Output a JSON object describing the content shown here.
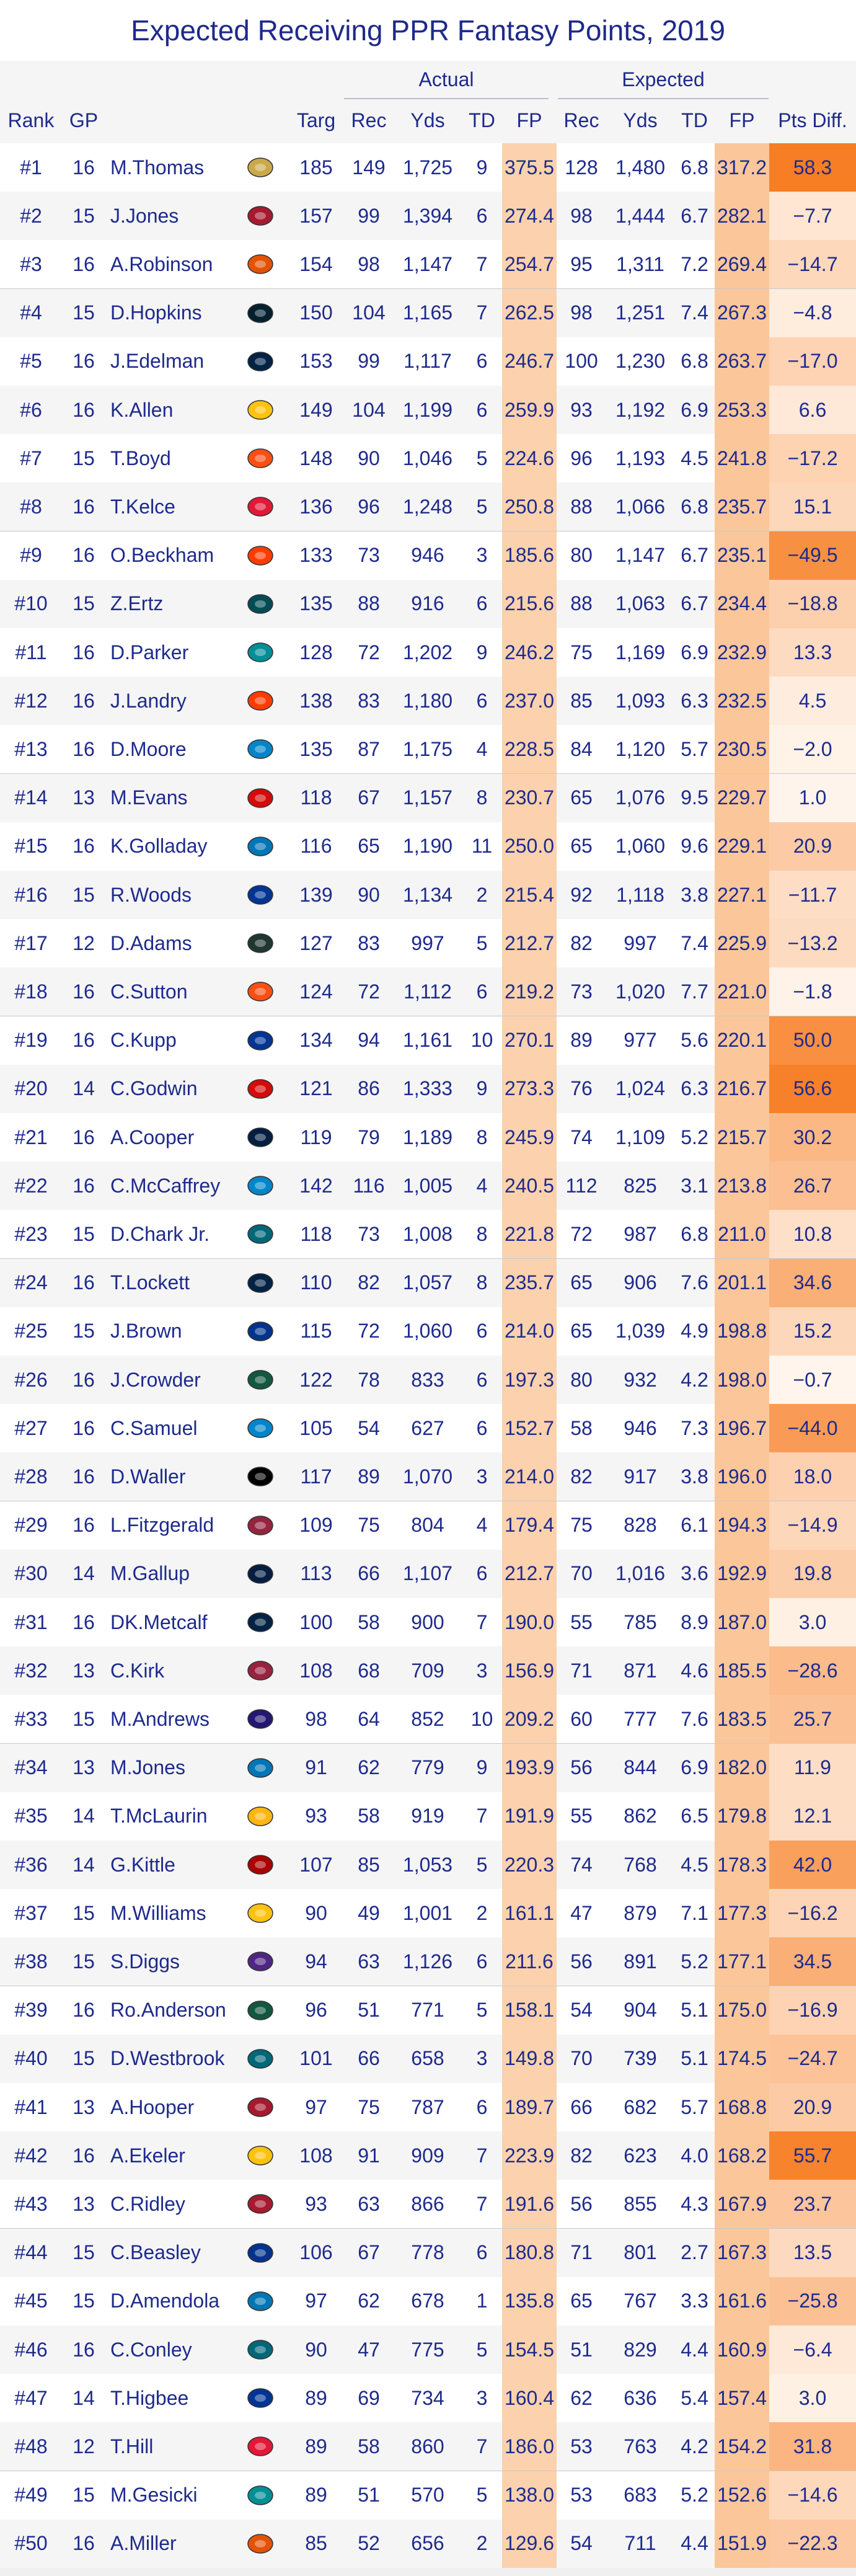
{
  "title": "Expected Receiving PPR Fantasy Points, 2019",
  "groups": {
    "actual": "Actual",
    "expected": "Expected"
  },
  "columns": {
    "rank": "Rank",
    "gp": "GP",
    "targ": "Targ",
    "a_rec": "Rec",
    "a_yds": "Yds",
    "a_td": "TD",
    "a_fp": "FP",
    "e_rec": "Rec",
    "e_yds": "Yds",
    "e_td": "TD",
    "e_fp": "FP",
    "pts_diff": "Pts Diff."
  },
  "team_colors": {
    "NO": "#c9a94a",
    "ATL": "#a6192e",
    "CHI": "#e35205",
    "HOU": "#03202f",
    "NE": "#002244",
    "LAC": "#ffc20e",
    "CIN": "#fb4f14",
    "KC": "#e31837",
    "CLE": "#ff3c00",
    "PHI": "#004c54",
    "MIA": "#008e97",
    "CAR": "#0085ca",
    "TB": "#d50a0a",
    "DET": "#0076b6",
    "LAR": "#003594",
    "GB": "#203731",
    "DEN": "#fb4f14",
    "DAL": "#041e42",
    "JAX": "#006778",
    "SEA": "#002244",
    "BUF": "#00338d",
    "NYJ": "#125740",
    "OAK": "#000000",
    "ARI": "#97233f",
    "BAL": "#241773",
    "WAS": "#ffb612",
    "SF": "#aa0000",
    "MIN": "#4f2683"
  },
  "rows": [
    {
      "rank": "#1",
      "gp": "16",
      "player": "M.Thomas",
      "team": "NO",
      "targ": "185",
      "a_rec": "149",
      "a_yds": "1,725",
      "a_td": "9",
      "a_fp": "375.5",
      "e_rec": "128",
      "e_yds": "1,480",
      "e_td": "6.8",
      "e_fp": "317.2",
      "diff": "58.3",
      "diff_value": 58.3
    },
    {
      "rank": "#2",
      "gp": "15",
      "player": "J.Jones",
      "team": "ATL",
      "targ": "157",
      "a_rec": "99",
      "a_yds": "1,394",
      "a_td": "6",
      "a_fp": "274.4",
      "e_rec": "98",
      "e_yds": "1,444",
      "e_td": "6.7",
      "e_fp": "282.1",
      "diff": "−7.7",
      "diff_value": -7.7
    },
    {
      "rank": "#3",
      "gp": "16",
      "player": "A.Robinson",
      "team": "CHI",
      "targ": "154",
      "a_rec": "98",
      "a_yds": "1,147",
      "a_td": "7",
      "a_fp": "254.7",
      "e_rec": "95",
      "e_yds": "1,311",
      "e_td": "7.2",
      "e_fp": "269.4",
      "diff": "−14.7",
      "diff_value": -14.7
    },
    {
      "rank": "#4",
      "gp": "15",
      "player": "D.Hopkins",
      "team": "HOU",
      "targ": "150",
      "a_rec": "104",
      "a_yds": "1,165",
      "a_td": "7",
      "a_fp": "262.5",
      "e_rec": "98",
      "e_yds": "1,251",
      "e_td": "7.4",
      "e_fp": "267.3",
      "diff": "−4.8",
      "diff_value": -4.8
    },
    {
      "rank": "#5",
      "gp": "16",
      "player": "J.Edelman",
      "team": "NE",
      "targ": "153",
      "a_rec": "99",
      "a_yds": "1,117",
      "a_td": "6",
      "a_fp": "246.7",
      "e_rec": "100",
      "e_yds": "1,230",
      "e_td": "6.8",
      "e_fp": "263.7",
      "diff": "−17.0",
      "diff_value": -17.0
    },
    {
      "rank": "#6",
      "gp": "16",
      "player": "K.Allen",
      "team": "LAC",
      "targ": "149",
      "a_rec": "104",
      "a_yds": "1,199",
      "a_td": "6",
      "a_fp": "259.9",
      "e_rec": "93",
      "e_yds": "1,192",
      "e_td": "6.9",
      "e_fp": "253.3",
      "diff": "6.6",
      "diff_value": 6.6
    },
    {
      "rank": "#7",
      "gp": "15",
      "player": "T.Boyd",
      "team": "CIN",
      "targ": "148",
      "a_rec": "90",
      "a_yds": "1,046",
      "a_td": "5",
      "a_fp": "224.6",
      "e_rec": "96",
      "e_yds": "1,193",
      "e_td": "4.5",
      "e_fp": "241.8",
      "diff": "−17.2",
      "diff_value": -17.2
    },
    {
      "rank": "#8",
      "gp": "16",
      "player": "T.Kelce",
      "team": "KC",
      "targ": "136",
      "a_rec": "96",
      "a_yds": "1,248",
      "a_td": "5",
      "a_fp": "250.8",
      "e_rec": "88",
      "e_yds": "1,066",
      "e_td": "6.8",
      "e_fp": "235.7",
      "diff": "15.1",
      "diff_value": 15.1
    },
    {
      "rank": "#9",
      "gp": "16",
      "player": "O.Beckham",
      "team": "CLE",
      "targ": "133",
      "a_rec": "73",
      "a_yds": "946",
      "a_td": "3",
      "a_fp": "185.6",
      "e_rec": "80",
      "e_yds": "1,147",
      "e_td": "6.7",
      "e_fp": "235.1",
      "diff": "−49.5",
      "diff_value": -49.5
    },
    {
      "rank": "#10",
      "gp": "15",
      "player": "Z.Ertz",
      "team": "PHI",
      "targ": "135",
      "a_rec": "88",
      "a_yds": "916",
      "a_td": "6",
      "a_fp": "215.6",
      "e_rec": "88",
      "e_yds": "1,063",
      "e_td": "6.7",
      "e_fp": "234.4",
      "diff": "−18.8",
      "diff_value": -18.8
    },
    {
      "rank": "#11",
      "gp": "16",
      "player": "D.Parker",
      "team": "MIA",
      "targ": "128",
      "a_rec": "72",
      "a_yds": "1,202",
      "a_td": "9",
      "a_fp": "246.2",
      "e_rec": "75",
      "e_yds": "1,169",
      "e_td": "6.9",
      "e_fp": "232.9",
      "diff": "13.3",
      "diff_value": 13.3
    },
    {
      "rank": "#12",
      "gp": "16",
      "player": "J.Landry",
      "team": "CLE",
      "targ": "138",
      "a_rec": "83",
      "a_yds": "1,180",
      "a_td": "6",
      "a_fp": "237.0",
      "e_rec": "85",
      "e_yds": "1,093",
      "e_td": "6.3",
      "e_fp": "232.5",
      "diff": "4.5",
      "diff_value": 4.5
    },
    {
      "rank": "#13",
      "gp": "16",
      "player": "D.Moore",
      "team": "CAR",
      "targ": "135",
      "a_rec": "87",
      "a_yds": "1,175",
      "a_td": "4",
      "a_fp": "228.5",
      "e_rec": "84",
      "e_yds": "1,120",
      "e_td": "5.7",
      "e_fp": "230.5",
      "diff": "−2.0",
      "diff_value": -2.0
    },
    {
      "rank": "#14",
      "gp": "13",
      "player": "M.Evans",
      "team": "TB",
      "targ": "118",
      "a_rec": "67",
      "a_yds": "1,157",
      "a_td": "8",
      "a_fp": "230.7",
      "e_rec": "65",
      "e_yds": "1,076",
      "e_td": "9.5",
      "e_fp": "229.7",
      "diff": "1.0",
      "diff_value": 1.0
    },
    {
      "rank": "#15",
      "gp": "16",
      "player": "K.Golladay",
      "team": "DET",
      "targ": "116",
      "a_rec": "65",
      "a_yds": "1,190",
      "a_td": "11",
      "a_fp": "250.0",
      "e_rec": "65",
      "e_yds": "1,060",
      "e_td": "9.6",
      "e_fp": "229.1",
      "diff": "20.9",
      "diff_value": 20.9
    },
    {
      "rank": "#16",
      "gp": "15",
      "player": "R.Woods",
      "team": "LAR",
      "targ": "139",
      "a_rec": "90",
      "a_yds": "1,134",
      "a_td": "2",
      "a_fp": "215.4",
      "e_rec": "92",
      "e_yds": "1,118",
      "e_td": "3.8",
      "e_fp": "227.1",
      "diff": "−11.7",
      "diff_value": -11.7
    },
    {
      "rank": "#17",
      "gp": "12",
      "player": "D.Adams",
      "team": "GB",
      "targ": "127",
      "a_rec": "83",
      "a_yds": "997",
      "a_td": "5",
      "a_fp": "212.7",
      "e_rec": "82",
      "e_yds": "997",
      "e_td": "7.4",
      "e_fp": "225.9",
      "diff": "−13.2",
      "diff_value": -13.2
    },
    {
      "rank": "#18",
      "gp": "16",
      "player": "C.Sutton",
      "team": "DEN",
      "targ": "124",
      "a_rec": "72",
      "a_yds": "1,112",
      "a_td": "6",
      "a_fp": "219.2",
      "e_rec": "73",
      "e_yds": "1,020",
      "e_td": "7.7",
      "e_fp": "221.0",
      "diff": "−1.8",
      "diff_value": -1.8
    },
    {
      "rank": "#19",
      "gp": "16",
      "player": "C.Kupp",
      "team": "LAR",
      "targ": "134",
      "a_rec": "94",
      "a_yds": "1,161",
      "a_td": "10",
      "a_fp": "270.1",
      "e_rec": "89",
      "e_yds": "977",
      "e_td": "5.6",
      "e_fp": "220.1",
      "diff": "50.0",
      "diff_value": 50.0
    },
    {
      "rank": "#20",
      "gp": "14",
      "player": "C.Godwin",
      "team": "TB",
      "targ": "121",
      "a_rec": "86",
      "a_yds": "1,333",
      "a_td": "9",
      "a_fp": "273.3",
      "e_rec": "76",
      "e_yds": "1,024",
      "e_td": "6.3",
      "e_fp": "216.7",
      "diff": "56.6",
      "diff_value": 56.6
    },
    {
      "rank": "#21",
      "gp": "16",
      "player": "A.Cooper",
      "team": "DAL",
      "targ": "119",
      "a_rec": "79",
      "a_yds": "1,189",
      "a_td": "8",
      "a_fp": "245.9",
      "e_rec": "74",
      "e_yds": "1,109",
      "e_td": "5.2",
      "e_fp": "215.7",
      "diff": "30.2",
      "diff_value": 30.2
    },
    {
      "rank": "#22",
      "gp": "16",
      "player": "C.McCaffrey",
      "team": "CAR",
      "targ": "142",
      "a_rec": "116",
      "a_yds": "1,005",
      "a_td": "4",
      "a_fp": "240.5",
      "e_rec": "112",
      "e_yds": "825",
      "e_td": "3.1",
      "e_fp": "213.8",
      "diff": "26.7",
      "diff_value": 26.7
    },
    {
      "rank": "#23",
      "gp": "15",
      "player": "D.Chark Jr.",
      "team": "JAX",
      "targ": "118",
      "a_rec": "73",
      "a_yds": "1,008",
      "a_td": "8",
      "a_fp": "221.8",
      "e_rec": "72",
      "e_yds": "987",
      "e_td": "6.8",
      "e_fp": "211.0",
      "diff": "10.8",
      "diff_value": 10.8
    },
    {
      "rank": "#24",
      "gp": "16",
      "player": "T.Lockett",
      "team": "SEA",
      "targ": "110",
      "a_rec": "82",
      "a_yds": "1,057",
      "a_td": "8",
      "a_fp": "235.7",
      "e_rec": "65",
      "e_yds": "906",
      "e_td": "7.6",
      "e_fp": "201.1",
      "diff": "34.6",
      "diff_value": 34.6
    },
    {
      "rank": "#25",
      "gp": "15",
      "player": "J.Brown",
      "team": "BUF",
      "targ": "115",
      "a_rec": "72",
      "a_yds": "1,060",
      "a_td": "6",
      "a_fp": "214.0",
      "e_rec": "65",
      "e_yds": "1,039",
      "e_td": "4.9",
      "e_fp": "198.8",
      "diff": "15.2",
      "diff_value": 15.2
    },
    {
      "rank": "#26",
      "gp": "16",
      "player": "J.Crowder",
      "team": "NYJ",
      "targ": "122",
      "a_rec": "78",
      "a_yds": "833",
      "a_td": "6",
      "a_fp": "197.3",
      "e_rec": "80",
      "e_yds": "932",
      "e_td": "4.2",
      "e_fp": "198.0",
      "diff": "−0.7",
      "diff_value": -0.7
    },
    {
      "rank": "#27",
      "gp": "16",
      "player": "C.Samuel",
      "team": "CAR",
      "targ": "105",
      "a_rec": "54",
      "a_yds": "627",
      "a_td": "6",
      "a_fp": "152.7",
      "e_rec": "58",
      "e_yds": "946",
      "e_td": "7.3",
      "e_fp": "196.7",
      "diff": "−44.0",
      "diff_value": -44.0
    },
    {
      "rank": "#28",
      "gp": "16",
      "player": "D.Waller",
      "team": "OAK",
      "targ": "117",
      "a_rec": "89",
      "a_yds": "1,070",
      "a_td": "3",
      "a_fp": "214.0",
      "e_rec": "82",
      "e_yds": "917",
      "e_td": "3.8",
      "e_fp": "196.0",
      "diff": "18.0",
      "diff_value": 18.0
    },
    {
      "rank": "#29",
      "gp": "16",
      "player": "L.Fitzgerald",
      "team": "ARI",
      "targ": "109",
      "a_rec": "75",
      "a_yds": "804",
      "a_td": "4",
      "a_fp": "179.4",
      "e_rec": "75",
      "e_yds": "828",
      "e_td": "6.1",
      "e_fp": "194.3",
      "diff": "−14.9",
      "diff_value": -14.9
    },
    {
      "rank": "#30",
      "gp": "14",
      "player": "M.Gallup",
      "team": "DAL",
      "targ": "113",
      "a_rec": "66",
      "a_yds": "1,107",
      "a_td": "6",
      "a_fp": "212.7",
      "e_rec": "70",
      "e_yds": "1,016",
      "e_td": "3.6",
      "e_fp": "192.9",
      "diff": "19.8",
      "diff_value": 19.8
    },
    {
      "rank": "#31",
      "gp": "16",
      "player": "DK.Metcalf",
      "team": "SEA",
      "targ": "100",
      "a_rec": "58",
      "a_yds": "900",
      "a_td": "7",
      "a_fp": "190.0",
      "e_rec": "55",
      "e_yds": "785",
      "e_td": "8.9",
      "e_fp": "187.0",
      "diff": "3.0",
      "diff_value": 3.0
    },
    {
      "rank": "#32",
      "gp": "13",
      "player": "C.Kirk",
      "team": "ARI",
      "targ": "108",
      "a_rec": "68",
      "a_yds": "709",
      "a_td": "3",
      "a_fp": "156.9",
      "e_rec": "71",
      "e_yds": "871",
      "e_td": "4.6",
      "e_fp": "185.5",
      "diff": "−28.6",
      "diff_value": -28.6
    },
    {
      "rank": "#33",
      "gp": "15",
      "player": "M.Andrews",
      "team": "BAL",
      "targ": "98",
      "a_rec": "64",
      "a_yds": "852",
      "a_td": "10",
      "a_fp": "209.2",
      "e_rec": "60",
      "e_yds": "777",
      "e_td": "7.6",
      "e_fp": "183.5",
      "diff": "25.7",
      "diff_value": 25.7
    },
    {
      "rank": "#34",
      "gp": "13",
      "player": "M.Jones",
      "team": "DET",
      "targ": "91",
      "a_rec": "62",
      "a_yds": "779",
      "a_td": "9",
      "a_fp": "193.9",
      "e_rec": "56",
      "e_yds": "844",
      "e_td": "6.9",
      "e_fp": "182.0",
      "diff": "11.9",
      "diff_value": 11.9
    },
    {
      "rank": "#35",
      "gp": "14",
      "player": "T.McLaurin",
      "team": "WAS",
      "targ": "93",
      "a_rec": "58",
      "a_yds": "919",
      "a_td": "7",
      "a_fp": "191.9",
      "e_rec": "55",
      "e_yds": "862",
      "e_td": "6.5",
      "e_fp": "179.8",
      "diff": "12.1",
      "diff_value": 12.1
    },
    {
      "rank": "#36",
      "gp": "14",
      "player": "G.Kittle",
      "team": "SF",
      "targ": "107",
      "a_rec": "85",
      "a_yds": "1,053",
      "a_td": "5",
      "a_fp": "220.3",
      "e_rec": "74",
      "e_yds": "768",
      "e_td": "4.5",
      "e_fp": "178.3",
      "diff": "42.0",
      "diff_value": 42.0
    },
    {
      "rank": "#37",
      "gp": "15",
      "player": "M.Williams",
      "team": "LAC",
      "targ": "90",
      "a_rec": "49",
      "a_yds": "1,001",
      "a_td": "2",
      "a_fp": "161.1",
      "e_rec": "47",
      "e_yds": "879",
      "e_td": "7.1",
      "e_fp": "177.3",
      "diff": "−16.2",
      "diff_value": -16.2
    },
    {
      "rank": "#38",
      "gp": "15",
      "player": "S.Diggs",
      "team": "MIN",
      "targ": "94",
      "a_rec": "63",
      "a_yds": "1,126",
      "a_td": "6",
      "a_fp": "211.6",
      "e_rec": "56",
      "e_yds": "891",
      "e_td": "5.2",
      "e_fp": "177.1",
      "diff": "34.5",
      "diff_value": 34.5
    },
    {
      "rank": "#39",
      "gp": "16",
      "player": "Ro.Anderson",
      "team": "NYJ",
      "targ": "96",
      "a_rec": "51",
      "a_yds": "771",
      "a_td": "5",
      "a_fp": "158.1",
      "e_rec": "54",
      "e_yds": "904",
      "e_td": "5.1",
      "e_fp": "175.0",
      "diff": "−16.9",
      "diff_value": -16.9
    },
    {
      "rank": "#40",
      "gp": "15",
      "player": "D.Westbrook",
      "team": "JAX",
      "targ": "101",
      "a_rec": "66",
      "a_yds": "658",
      "a_td": "3",
      "a_fp": "149.8",
      "e_rec": "70",
      "e_yds": "739",
      "e_td": "5.1",
      "e_fp": "174.5",
      "diff": "−24.7",
      "diff_value": -24.7
    },
    {
      "rank": "#41",
      "gp": "13",
      "player": "A.Hooper",
      "team": "ATL",
      "targ": "97",
      "a_rec": "75",
      "a_yds": "787",
      "a_td": "6",
      "a_fp": "189.7",
      "e_rec": "66",
      "e_yds": "682",
      "e_td": "5.7",
      "e_fp": "168.8",
      "diff": "20.9",
      "diff_value": 20.9
    },
    {
      "rank": "#42",
      "gp": "16",
      "player": "A.Ekeler",
      "team": "LAC",
      "targ": "108",
      "a_rec": "91",
      "a_yds": "909",
      "a_td": "7",
      "a_fp": "223.9",
      "e_rec": "82",
      "e_yds": "623",
      "e_td": "4.0",
      "e_fp": "168.2",
      "diff": "55.7",
      "diff_value": 55.7
    },
    {
      "rank": "#43",
      "gp": "13",
      "player": "C.Ridley",
      "team": "ATL",
      "targ": "93",
      "a_rec": "63",
      "a_yds": "866",
      "a_td": "7",
      "a_fp": "191.6",
      "e_rec": "56",
      "e_yds": "855",
      "e_td": "4.3",
      "e_fp": "167.9",
      "diff": "23.7",
      "diff_value": 23.7
    },
    {
      "rank": "#44",
      "gp": "15",
      "player": "C.Beasley",
      "team": "BUF",
      "targ": "106",
      "a_rec": "67",
      "a_yds": "778",
      "a_td": "6",
      "a_fp": "180.8",
      "e_rec": "71",
      "e_yds": "801",
      "e_td": "2.7",
      "e_fp": "167.3",
      "diff": "13.5",
      "diff_value": 13.5
    },
    {
      "rank": "#45",
      "gp": "15",
      "player": "D.Amendola",
      "team": "DET",
      "targ": "97",
      "a_rec": "62",
      "a_yds": "678",
      "a_td": "1",
      "a_fp": "135.8",
      "e_rec": "65",
      "e_yds": "767",
      "e_td": "3.3",
      "e_fp": "161.6",
      "diff": "−25.8",
      "diff_value": -25.8
    },
    {
      "rank": "#46",
      "gp": "16",
      "player": "C.Conley",
      "team": "JAX",
      "targ": "90",
      "a_rec": "47",
      "a_yds": "775",
      "a_td": "5",
      "a_fp": "154.5",
      "e_rec": "51",
      "e_yds": "829",
      "e_td": "4.4",
      "e_fp": "160.9",
      "diff": "−6.4",
      "diff_value": -6.4
    },
    {
      "rank": "#47",
      "gp": "14",
      "player": "T.Higbee",
      "team": "LAR",
      "targ": "89",
      "a_rec": "69",
      "a_yds": "734",
      "a_td": "3",
      "a_fp": "160.4",
      "e_rec": "62",
      "e_yds": "636",
      "e_td": "5.4",
      "e_fp": "157.4",
      "diff": "3.0",
      "diff_value": 3.0
    },
    {
      "rank": "#48",
      "gp": "12",
      "player": "T.Hill",
      "team": "KC",
      "targ": "89",
      "a_rec": "58",
      "a_yds": "860",
      "a_td": "7",
      "a_fp": "186.0",
      "e_rec": "53",
      "e_yds": "763",
      "e_td": "4.2",
      "e_fp": "154.2",
      "diff": "31.8",
      "diff_value": 31.8
    },
    {
      "rank": "#49",
      "gp": "15",
      "player": "M.Gesicki",
      "team": "MIA",
      "targ": "89",
      "a_rec": "51",
      "a_yds": "570",
      "a_td": "5",
      "a_fp": "138.0",
      "e_rec": "53",
      "e_yds": "683",
      "e_td": "5.2",
      "e_fp": "152.6",
      "diff": "−14.6",
      "diff_value": -14.6
    },
    {
      "rank": "#50",
      "gp": "16",
      "player": "A.Miller",
      "team": "CHI",
      "targ": "85",
      "a_rec": "52",
      "a_yds": "656",
      "a_td": "2",
      "a_fp": "129.6",
      "e_rec": "54",
      "e_yds": "711",
      "e_td": "4.4",
      "e_fp": "151.9",
      "diff": "−22.3",
      "diff_value": -22.3
    }
  ]
}
